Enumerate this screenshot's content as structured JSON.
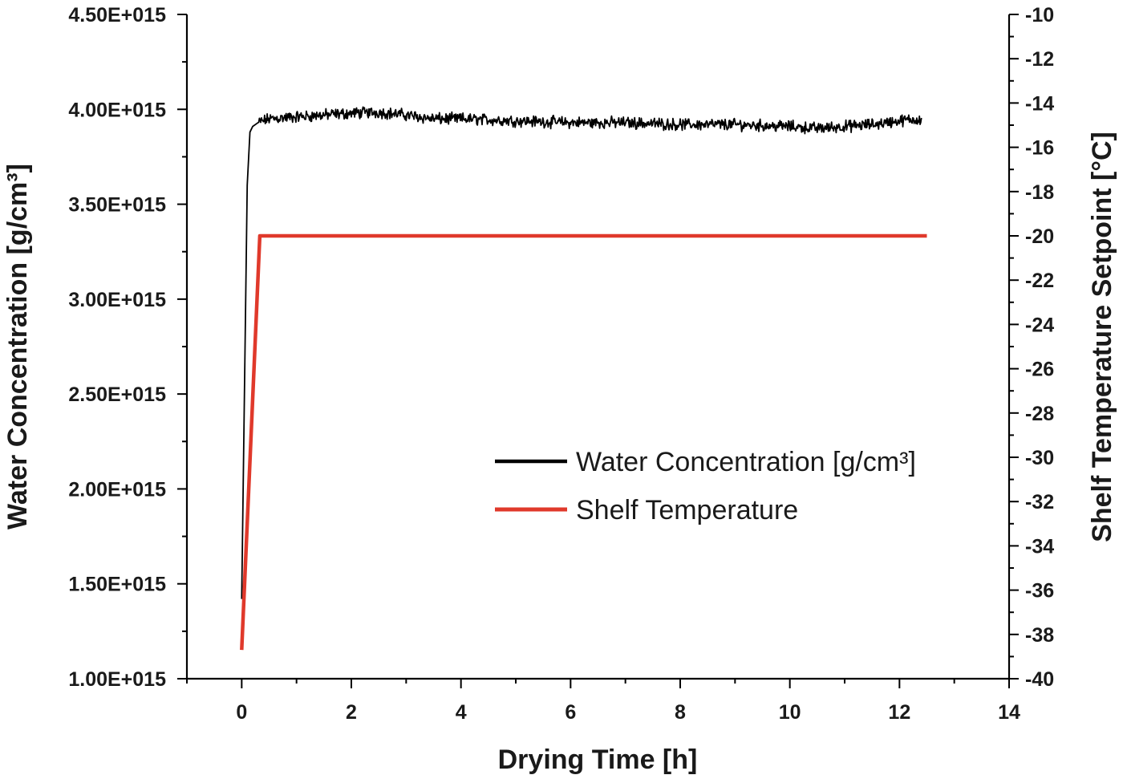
{
  "chart_data": {
    "type": "line",
    "xlabel": "Drying Time [h]",
    "ylabel": "Water Concentration [g/cm³]",
    "y2label": "Shelf Temperature Setpoint [°C]",
    "xlim": [
      -1,
      14
    ],
    "ylim": [
      1000000000000000.0,
      4500000000000000.0
    ],
    "y2lim": [
      -40,
      -10
    ],
    "x_ticks": [
      "0",
      "2",
      "4",
      "6",
      "8",
      "10",
      "12",
      "14"
    ],
    "y_ticks": [
      "1.00E+015",
      "1.50E+015",
      "2.00E+015",
      "2.50E+015",
      "3.00E+015",
      "3.50E+015",
      "4.00E+015",
      "4.50E+015"
    ],
    "y2_ticks": [
      "-40",
      "-38",
      "-36",
      "-34",
      "-32",
      "-30",
      "-28",
      "-26",
      "-24",
      "-22",
      "-20",
      "-18",
      "-16",
      "-14",
      "-12",
      "-10"
    ],
    "grid": false,
    "legend_position": "center-right",
    "series": [
      {
        "name": "Water Concentration [g/cm³]",
        "axis": "left",
        "color": "#000000",
        "noisy": true,
        "x": [
          0.0,
          0.1,
          0.15,
          0.2,
          0.3,
          0.5,
          1.0,
          1.5,
          2.0,
          2.5,
          3.0,
          3.5,
          4.0,
          5.0,
          6.0,
          7.0,
          8.0,
          9.0,
          10.0,
          10.5,
          11.0,
          11.5,
          12.0,
          12.4
        ],
        "values": [
          1420000000000000.0,
          3600000000000000.0,
          3880000000000000.0,
          3910000000000000.0,
          3930000000000000.0,
          3950000000000000.0,
          3960000000000000.0,
          3970000000000000.0,
          3980000000000000.0,
          3985000000000000.0,
          3970000000000000.0,
          3950000000000000.0,
          3950000000000000.0,
          3940000000000000.0,
          3930000000000000.0,
          3930000000000000.0,
          3920000000000000.0,
          3920000000000000.0,
          3910000000000000.0,
          3900000000000000.0,
          3910000000000000.0,
          3920000000000000.0,
          3940000000000000.0,
          3950000000000000.0
        ]
      },
      {
        "name": "Shelf Temperature",
        "axis": "right",
        "color": "#e0392b",
        "noisy": false,
        "x": [
          0.0,
          0.33,
          12.5
        ],
        "values": [
          -38.7,
          -20,
          -20
        ]
      }
    ]
  }
}
